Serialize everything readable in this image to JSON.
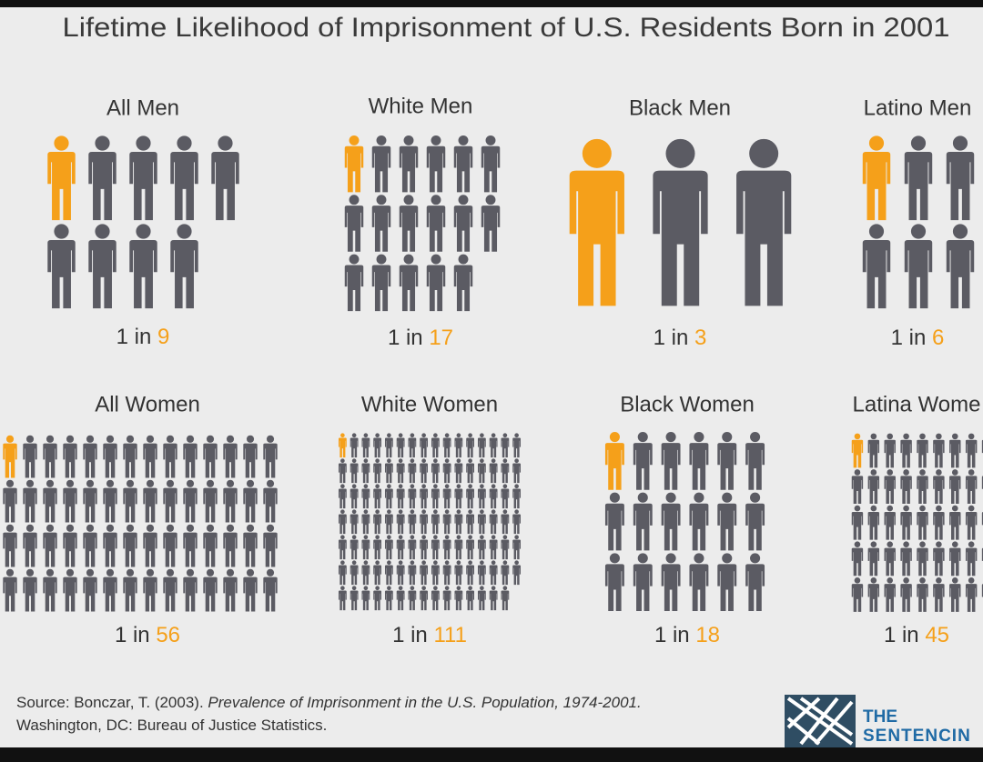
{
  "chart_data": {
    "type": "pictograph",
    "title": "Lifetime Likelihood of Imprisonment of U.S. Residents Born in 2001",
    "prefix": "1 in",
    "categories": [
      "All Men",
      "White Men",
      "Black Men",
      "Latino Men",
      "All Women",
      "White Women",
      "Black Women",
      "Latina Wome"
    ],
    "values": [
      9,
      17,
      3,
      6,
      56,
      111,
      18,
      45
    ],
    "color": "#5b5b63",
    "highlight_color": "#f5a01a"
  },
  "source": {
    "text": "Source: Bonczar, T. (2003).",
    "italic": "Prevalence of Imprisonment in the U.S. Population, 1974-2001.",
    "rest": "Washington, DC: Bureau of Justice Statistics."
  },
  "logo": {
    "line1": "THE",
    "line2": "SENTENCIN"
  }
}
